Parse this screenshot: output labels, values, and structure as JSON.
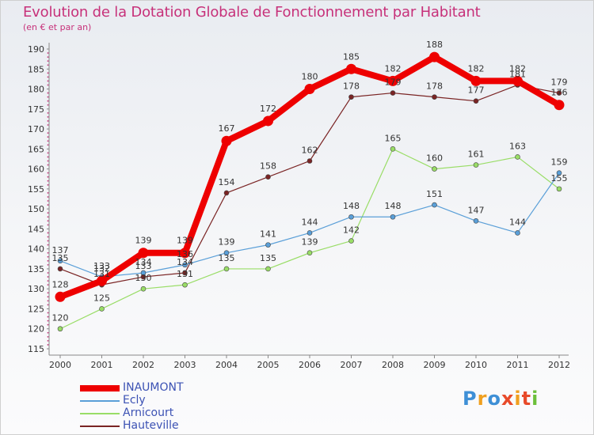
{
  "chart_data": {
    "type": "line",
    "title": "Evolution de la Dotation Globale de Fonctionnement par Habitant",
    "subtitle": "(en € et par an)",
    "xlabel": "",
    "ylabel": "",
    "ylim": [
      115,
      190
    ],
    "yticks": [
      "115",
      "120",
      "125",
      "130",
      "135",
      "140",
      "145",
      "150",
      "155",
      "160",
      "165",
      "170",
      "175",
      "180",
      "185",
      "190"
    ],
    "categories": [
      "2000",
      "2001",
      "2002",
      "2003",
      "2004",
      "2005",
      "2006",
      "2007",
      "2008",
      "2009",
      "2010",
      "2011",
      "2012"
    ],
    "series": [
      {
        "name": "INAUMONT",
        "color": "#ee0000",
        "values": [
          128,
          132,
          139,
          139,
          167,
          172,
          180,
          185,
          182,
          188,
          182,
          182,
          176
        ]
      },
      {
        "name": "Ecly",
        "color": "#5a9fd8",
        "values": [
          137,
          133,
          134,
          136,
          139,
          141,
          144,
          148,
          148,
          151,
          147,
          144,
          159
        ]
      },
      {
        "name": "Arnicourt",
        "color": "#99dd66",
        "values": [
          120,
          125,
          130,
          131,
          135,
          135,
          139,
          142,
          165,
          160,
          161,
          163,
          155
        ]
      },
      {
        "name": "Hauteville",
        "color": "#7a2424",
        "values": [
          135,
          131,
          133,
          134,
          154,
          158,
          162,
          178,
          179,
          178,
          177,
          181,
          179
        ]
      }
    ],
    "grid": false,
    "legend": "bottom-left"
  },
  "logo": {
    "text": "Proxiti",
    "colors": [
      "#3e8fd6",
      "#f0a020",
      "#3e8fd6",
      "#e84a2a",
      "#f0a020",
      "#e84a2a",
      "#6cbf3a"
    ]
  }
}
